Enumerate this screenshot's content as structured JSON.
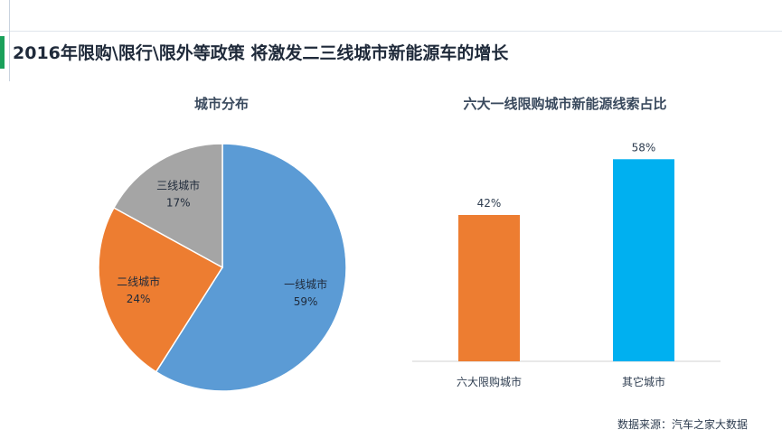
{
  "title": "2016年限购\\限行\\限外等政策 将激发二三线城市新能源车的增长",
  "source": "数据来源：汽车之家大数据",
  "colors": {
    "accent_green": "#1aa05a",
    "pie_tier1": "#5b9bd5",
    "pie_tier2": "#ed7d31",
    "pie_tier3": "#a5a5a5",
    "bar_six_cities": "#ed7d31",
    "bar_other_cities": "#00b0f0"
  },
  "chart_data": [
    {
      "type": "pie",
      "title": "城市分布",
      "labels": [
        "一线城市",
        "二线城市",
        "三线城市"
      ],
      "values": [
        59,
        24,
        17
      ],
      "value_labels": [
        "59%",
        "24%",
        "17%"
      ],
      "start": "12 o'clock, clockwise"
    },
    {
      "type": "bar",
      "title": "六大一线限购城市新能源线索占比",
      "categories": [
        "六大限购城市",
        "其它城市"
      ],
      "values": [
        42,
        58
      ],
      "value_labels": [
        "42%",
        "58%"
      ],
      "ylim": [
        0,
        70
      ],
      "grid": false
    }
  ]
}
